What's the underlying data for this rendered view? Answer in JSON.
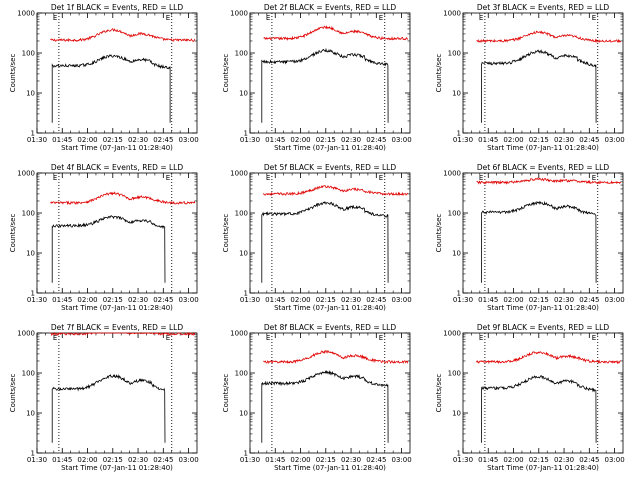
{
  "figure": {
    "xtick_labels": [
      "01:30",
      "01:45",
      "02:00",
      "02:15",
      "02:30",
      "02:45",
      "03:00"
    ],
    "xtick_minutes": [
      0,
      15,
      30,
      45,
      60,
      75,
      90
    ],
    "x_range_minutes": [
      0,
      95
    ],
    "ytick_labels": [
      "1",
      "10",
      "100",
      "1000"
    ],
    "ylim": [
      1,
      1000
    ],
    "y_scale": "log",
    "xlabel": "Start Time (07-Jan-11 01:28:40)",
    "ylabel": "Counts/sec",
    "marker_label": "E",
    "colors": {
      "events": "#000000",
      "lld": "#e00000"
    }
  },
  "chart_data": [
    {
      "type": "line",
      "title": "Det 1f BLACK = Events, RED = LLD",
      "xlim_min": [
        0,
        95
      ],
      "ylim": [
        1,
        1000
      ],
      "y_scale": "log",
      "markers_min": [
        13,
        80
      ],
      "events_range_min": [
        9,
        79
      ],
      "series": [
        {
          "name": "Events",
          "base": 48,
          "peak": 85
        },
        {
          "name": "LLD",
          "base": 210,
          "peak": 380
        }
      ]
    },
    {
      "type": "line",
      "title": "Det 2f BLACK = Events, RED = LLD",
      "xlim_min": [
        0,
        95
      ],
      "ylim": [
        1,
        1000
      ],
      "y_scale": "log",
      "markers_min": [
        13,
        80
      ],
      "events_range_min": [
        7,
        82
      ],
      "series": [
        {
          "name": "Events",
          "base": 60,
          "peak": 115
        },
        {
          "name": "LLD",
          "base": 230,
          "peak": 440
        }
      ]
    },
    {
      "type": "line",
      "title": "Det 3f BLACK = Events, RED = LLD",
      "xlim_min": [
        0,
        95
      ],
      "ylim": [
        1,
        1000
      ],
      "y_scale": "log",
      "markers_min": [
        13,
        80
      ],
      "events_range_min": [
        11,
        79
      ],
      "series": [
        {
          "name": "Events",
          "base": 55,
          "peak": 110
        },
        {
          "name": "LLD",
          "base": 200,
          "peak": 330
        }
      ]
    },
    {
      "type": "line",
      "title": "Det 4f BLACK = Events, RED = LLD",
      "xlim_min": [
        0,
        95
      ],
      "ylim": [
        1,
        1000
      ],
      "y_scale": "log",
      "markers_min": [
        13,
        80
      ],
      "events_range_min": [
        9,
        76
      ],
      "series": [
        {
          "name": "Events",
          "base": 48,
          "peak": 80
        },
        {
          "name": "LLD",
          "base": 180,
          "peak": 310
        }
      ]
    },
    {
      "type": "line",
      "title": "Det 5f BLACK = Events, RED = LLD",
      "xlim_min": [
        0,
        95
      ],
      "ylim": [
        1,
        1000
      ],
      "y_scale": "log",
      "markers_min": [
        13,
        80
      ],
      "events_range_min": [
        7,
        82
      ],
      "series": [
        {
          "name": "Events",
          "base": 95,
          "peak": 180
        },
        {
          "name": "LLD",
          "base": 300,
          "peak": 460
        }
      ]
    },
    {
      "type": "line",
      "title": "Det 6f BLACK = Events, RED = LLD",
      "xlim_min": [
        0,
        95
      ],
      "ylim": [
        1,
        1000
      ],
      "y_scale": "log",
      "markers_min": [
        13,
        80
      ],
      "events_range_min": [
        11,
        79
      ],
      "series": [
        {
          "name": "Events",
          "base": 105,
          "peak": 180
        },
        {
          "name": "LLD",
          "base": 580,
          "peak": 700
        }
      ]
    },
    {
      "type": "line",
      "title": "Det 7f BLACK = Events, RED = LLD",
      "xlim_min": [
        0,
        95
      ],
      "ylim": [
        1,
        1000
      ],
      "y_scale": "log",
      "markers_min": [
        13,
        80
      ],
      "events_range_min": [
        9,
        76
      ],
      "series": [
        {
          "name": "Events",
          "base": 40,
          "peak": 85
        },
        {
          "name": "LLD",
          "base": 950,
          "peak": 1100
        }
      ]
    },
    {
      "type": "line",
      "title": "Det 8f BLACK = Events, RED = LLD",
      "xlim_min": [
        0,
        95
      ],
      "ylim": [
        1,
        1000
      ],
      "y_scale": "log",
      "markers_min": [
        13,
        80
      ],
      "events_range_min": [
        7,
        82
      ],
      "series": [
        {
          "name": "Events",
          "base": 55,
          "peak": 105
        },
        {
          "name": "LLD",
          "base": 190,
          "peak": 340
        }
      ]
    },
    {
      "type": "line",
      "title": "Det 9f BLACK = Events, RED = LLD",
      "xlim_min": [
        0,
        95
      ],
      "ylim": [
        1,
        1000
      ],
      "y_scale": "log",
      "markers_min": [
        13,
        80
      ],
      "events_range_min": [
        11,
        79
      ],
      "series": [
        {
          "name": "Events",
          "base": 42,
          "peak": 80
        },
        {
          "name": "LLD",
          "base": 190,
          "peak": 330
        }
      ]
    }
  ]
}
